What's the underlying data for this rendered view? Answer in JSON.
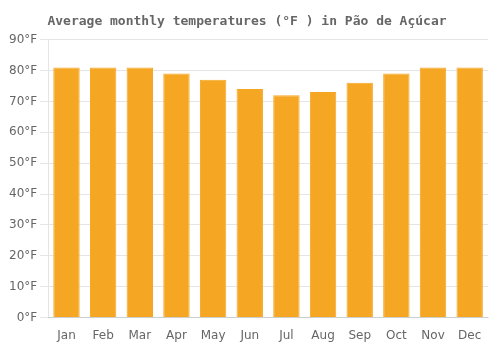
{
  "chart_data": {
    "type": "bar",
    "title": "Average monthly temperatures (°F ) in Pão de Açúcar",
    "categories": [
      "Jan",
      "Feb",
      "Mar",
      "Apr",
      "May",
      "Jun",
      "Jul",
      "Aug",
      "Sep",
      "Oct",
      "Nov",
      "Dec"
    ],
    "values": [
      81,
      81,
      81,
      79,
      77,
      74,
      72,
      73,
      76,
      79,
      81,
      81
    ],
    "color": "#F5A623",
    "ylim": [
      0,
      90
    ],
    "yticks": [
      {
        "value": 0,
        "label": "0°F"
      },
      {
        "value": 10,
        "label": "10°F"
      },
      {
        "value": 20,
        "label": "20°F"
      },
      {
        "value": 30,
        "label": "30°F"
      },
      {
        "value": 40,
        "label": "40°F"
      },
      {
        "value": 50,
        "label": "50°F"
      },
      {
        "value": 60,
        "label": "60°F"
      },
      {
        "value": 70,
        "label": "70°F"
      },
      {
        "value": 80,
        "label": "80°F"
      },
      {
        "value": 90,
        "label": "90°F"
      }
    ],
    "grid": true
  }
}
